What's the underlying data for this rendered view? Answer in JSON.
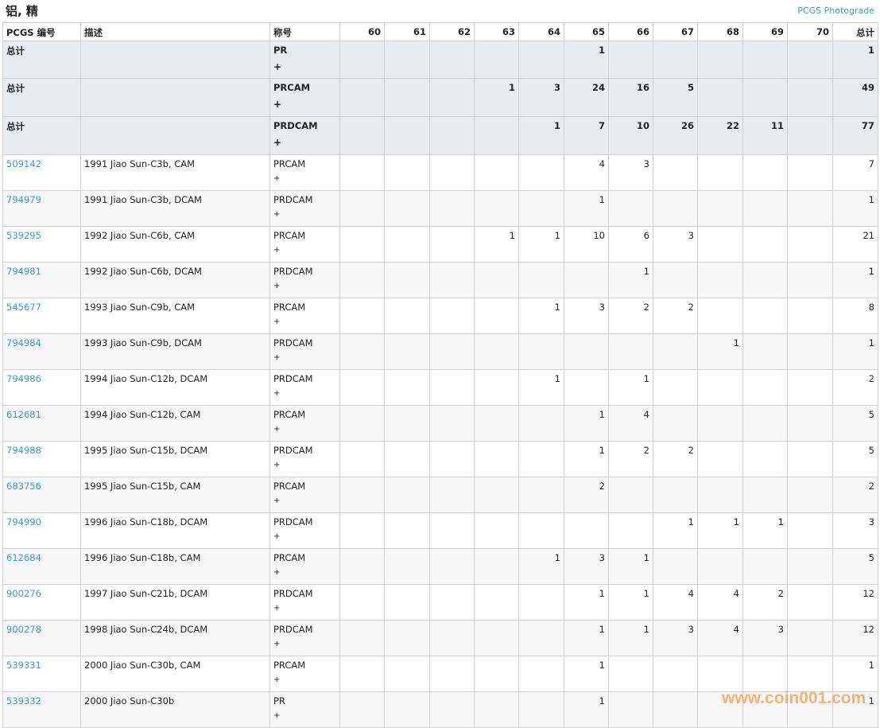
{
  "title": "铝, 精",
  "photograde_link": "PCGS Photograde",
  "headers": [
    "PCGS 编号",
    "描述",
    "称号",
    "60",
    "61",
    "62",
    "63",
    "64",
    "65",
    "66",
    "67",
    "68",
    "69",
    "70",
    "总计"
  ],
  "summary_rows": [
    {
      "label": "总计",
      "designation": "PR",
      "suffix": "+",
      "grades": [
        "",
        "",
        "",
        "",
        "",
        "1",
        "",
        "",
        "",
        "",
        "",
        "1"
      ]
    },
    {
      "label": "总计",
      "designation": "PRCAM",
      "suffix": "+",
      "grades": [
        "",
        "",
        "",
        "1",
        "3",
        "24",
        "16",
        "5",
        "",
        "",
        "",
        "49"
      ]
    },
    {
      "label": "总计",
      "designation": "PRDCAM",
      "suffix": "+",
      "grades": [
        "",
        "",
        "",
        "",
        "1",
        "7",
        "10",
        "26",
        "22",
        "11",
        "",
        "77"
      ]
    }
  ],
  "rows": [
    {
      "id": "509142",
      "desc": "1991 Jiao Sun-C3b, CAM",
      "designation": "PRCAM",
      "suffix": "+",
      "grades": [
        "",
        "",
        "",
        "",
        "",
        "4",
        "3",
        "",
        "",
        "",
        "",
        "7"
      ]
    },
    {
      "id": "794979",
      "desc": "1991 Jiao Sun-C3b, DCAM",
      "designation": "PRDCAM",
      "suffix": "+",
      "grades": [
        "",
        "",
        "",
        "",
        "",
        "1",
        "",
        "",
        "",
        "",
        "",
        "1"
      ]
    },
    {
      "id": "539295",
      "desc": "1992 Jiao Sun-C6b, CAM",
      "designation": "PRCAM",
      "suffix": "+",
      "grades": [
        "",
        "",
        "",
        "1",
        "1",
        "10",
        "6",
        "3",
        "",
        "",
        "",
        "21"
      ]
    },
    {
      "id": "794981",
      "desc": "1992 Jiao Sun-C6b, DCAM",
      "designation": "PRDCAM",
      "suffix": "+",
      "grades": [
        "",
        "",
        "",
        "",
        "",
        "",
        "1",
        "",
        "",
        "",
        "",
        "1"
      ]
    },
    {
      "id": "545677",
      "desc": "1993 Jiao Sun-C9b, CAM",
      "designation": "PRCAM",
      "suffix": "+",
      "grades": [
        "",
        "",
        "",
        "",
        "1",
        "3",
        "2",
        "2",
        "",
        "",
        "",
        "8"
      ]
    },
    {
      "id": "794984",
      "desc": "1993 Jiao Sun-C9b, DCAM",
      "designation": "PRDCAM",
      "suffix": "+",
      "grades": [
        "",
        "",
        "",
        "",
        "",
        "",
        "",
        "",
        "1",
        "",
        "",
        "1"
      ]
    },
    {
      "id": "794986",
      "desc": "1994 Jiao Sun-C12b, DCAM",
      "designation": "PRDCAM",
      "suffix": "+",
      "grades": [
        "",
        "",
        "",
        "",
        "1",
        "",
        "1",
        "",
        "",
        "",
        "",
        "2"
      ]
    },
    {
      "id": "612681",
      "desc": "1994 Jiao Sun-C12b, CAM",
      "designation": "PRCAM",
      "suffix": "+",
      "grades": [
        "",
        "",
        "",
        "",
        "",
        "1",
        "4",
        "",
        "",
        "",
        "",
        "5"
      ]
    },
    {
      "id": "794988",
      "desc": "1995 Jiao Sun-C15b, DCAM",
      "designation": "PRDCAM",
      "suffix": "+",
      "grades": [
        "",
        "",
        "",
        "",
        "",
        "1",
        "2",
        "2",
        "",
        "",
        "",
        "5"
      ]
    },
    {
      "id": "683756",
      "desc": "1995 Jiao Sun-C15b, CAM",
      "designation": "PRCAM",
      "suffix": "+",
      "grades": [
        "",
        "",
        "",
        "",
        "",
        "2",
        "",
        "",
        "",
        "",
        "",
        "2"
      ]
    },
    {
      "id": "794990",
      "desc": "1996 Jiao Sun-C18b, DCAM",
      "designation": "PRDCAM",
      "suffix": "+",
      "grades": [
        "",
        "",
        "",
        "",
        "",
        "",
        "",
        "1",
        "1",
        "1",
        "",
        "3"
      ]
    },
    {
      "id": "612684",
      "desc": "1996 Jiao Sun-C18b, CAM",
      "designation": "PRCAM",
      "suffix": "+",
      "grades": [
        "",
        "",
        "",
        "",
        "1",
        "3",
        "1",
        "",
        "",
        "",
        "",
        "5"
      ]
    },
    {
      "id": "900276",
      "desc": "1997 Jiao Sun-C21b, DCAM",
      "designation": "PRDCAM",
      "suffix": "+",
      "grades": [
        "",
        "",
        "",
        "",
        "",
        "1",
        "1",
        "4",
        "4",
        "2",
        "",
        "12"
      ]
    },
    {
      "id": "900278",
      "desc": "1998 Jiao Sun-C24b, DCAM",
      "designation": "PRDCAM",
      "suffix": "+",
      "grades": [
        "",
        "",
        "",
        "",
        "",
        "1",
        "1",
        "3",
        "4",
        "3",
        "",
        "12"
      ]
    },
    {
      "id": "539331",
      "desc": "2000 Jiao Sun-C30b, CAM",
      "designation": "PRCAM",
      "suffix": "+",
      "grades": [
        "",
        "",
        "",
        "",
        "",
        "1",
        "",
        "",
        "",
        "",
        "",
        "1"
      ]
    },
    {
      "id": "539332",
      "desc": "2000 Jiao Sun-C30b",
      "designation": "PR",
      "suffix": "+",
      "grades": [
        "",
        "",
        "",
        "",
        "",
        "1",
        "",
        "",
        "",
        "",
        "",
        "1"
      ]
    }
  ],
  "watermark": "www.coin001.com",
  "colors": {
    "link": "#3b9ad9",
    "summary_bg": "#e8ecf0",
    "watermark": "#f5a65b"
  }
}
